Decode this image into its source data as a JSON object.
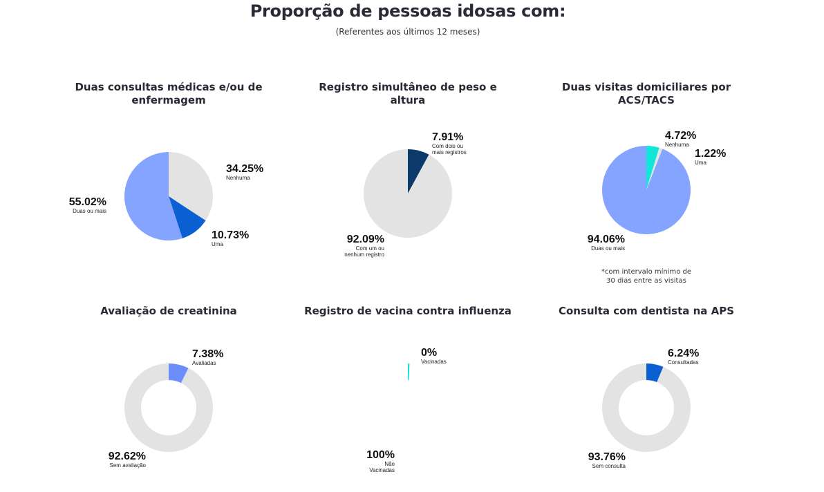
{
  "header": {
    "title": "Proporção de pessoas idosas com:",
    "subtitle": "(Referentes aos últimos 12 meses)"
  },
  "colors": {
    "gray": "#e3e3e3",
    "light_blue": "#85a4ff",
    "blue": "#0a5fd2",
    "navy": "#0b3a6b",
    "cyan": "#11e6d8",
    "periwinkle": "#6b8efa"
  },
  "charts": [
    {
      "title": "Duas consultas médicas e/ou de enfermagem",
      "labels": [
        {
          "pct": "34.25%",
          "cat": "Nenhuma"
        },
        {
          "pct": "10.73%",
          "cat": "Uma"
        },
        {
          "pct": "55.02%",
          "cat": "Duas ou mais"
        }
      ]
    },
    {
      "title": "Registro simultâneo de peso e altura",
      "labels": [
        {
          "pct": "7.91%",
          "cat1": "Com dois ou",
          "cat2": "mais registros"
        },
        {
          "pct": "92.09%",
          "cat1": "Com um ou",
          "cat2": "nenhum registro"
        }
      ]
    },
    {
      "title": "Duas visitas domiciliares por ACS/TACS",
      "labels": [
        {
          "pct": "4.72%",
          "cat": "Nenhuma"
        },
        {
          "pct": "1.22%",
          "cat": "Uma"
        },
        {
          "pct": "94.06%",
          "cat": "Duas ou mais"
        }
      ],
      "note1": "*com intervalo mínimo de",
      "note2": "30 dias entre as visitas"
    },
    {
      "title": "Avaliação de creatinina",
      "labels": [
        {
          "pct": "7.38%",
          "cat": "Avaliadas"
        },
        {
          "pct": "92.62%",
          "cat": "Sem avaliação"
        }
      ]
    },
    {
      "title": "Registro de vacina contra influenza",
      "labels": [
        {
          "pct": "0%",
          "cat": "Vacinadas"
        },
        {
          "pct": "100%",
          "cat1": "Não",
          "cat2": "Vacinadas"
        }
      ]
    },
    {
      "title": "Consulta com dentista na APS",
      "labels": [
        {
          "pct": "6.24%",
          "cat": "Consultadas"
        },
        {
          "pct": "93.76%",
          "cat": "Sem consulta"
        }
      ]
    }
  ],
  "chart_data": [
    {
      "type": "pie",
      "title": "Duas consultas médicas e/ou de enfermagem",
      "categories": [
        "Nenhuma",
        "Uma",
        "Duas ou mais"
      ],
      "values": [
        34.25,
        10.73,
        55.02
      ],
      "colors": [
        "#e3e3e3",
        "#0a5fd2",
        "#85a4ff"
      ]
    },
    {
      "type": "pie",
      "title": "Registro simultâneo de peso e altura",
      "categories": [
        "Com dois ou mais registros",
        "Com um ou nenhum registro"
      ],
      "values": [
        7.91,
        92.09
      ],
      "colors": [
        "#0b3a6b",
        "#e3e3e3"
      ]
    },
    {
      "type": "pie",
      "title": "Duas visitas domiciliares por ACS/TACS",
      "categories": [
        "Nenhuma",
        "Uma",
        "Duas ou mais"
      ],
      "values": [
        4.72,
        1.22,
        94.06
      ],
      "colors": [
        "#11e6d8",
        "#e3e3e3",
        "#85a4ff"
      ],
      "annotation": "*com intervalo mínimo de 30 dias entre as visitas"
    },
    {
      "type": "pie",
      "donut": true,
      "title": "Avaliação de creatinina",
      "categories": [
        "Avaliadas",
        "Sem avaliação"
      ],
      "values": [
        7.38,
        92.62
      ],
      "colors": [
        "#6b8efa",
        "#e3e3e3"
      ]
    },
    {
      "type": "pie",
      "donut": true,
      "title": "Registro de vacina contra influenza",
      "categories": [
        "Vacinadas",
        "Não Vacinadas"
      ],
      "values": [
        0,
        100
      ],
      "colors": [
        "#11e6d8",
        "#e3e3e3"
      ]
    },
    {
      "type": "pie",
      "donut": true,
      "title": "Consulta com dentista na APS",
      "categories": [
        "Consultadas",
        "Sem consulta"
      ],
      "values": [
        6.24,
        93.76
      ],
      "colors": [
        "#0a5fd2",
        "#e3e3e3"
      ]
    }
  ]
}
